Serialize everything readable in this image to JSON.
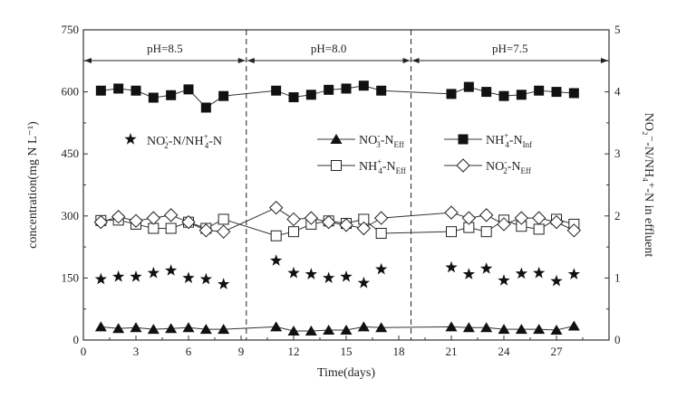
{
  "chart_data": {
    "type": "scatter",
    "xlabel": "Time(days)",
    "ylabel": "concentration(mg N L⁻¹)",
    "ylabel_right": "NO₂⁻-N/NH₄⁺-N in effluent",
    "xlim": [
      0,
      30
    ],
    "ylim": [
      0,
      750
    ],
    "ylim_right": [
      0,
      5
    ],
    "xticks": [
      0,
      3,
      6,
      9,
      12,
      15,
      18,
      21,
      24,
      27
    ],
    "yticks": [
      0,
      150,
      300,
      450,
      600,
      750
    ],
    "yticks_right": [
      0,
      1,
      2,
      3,
      4,
      5
    ],
    "phases": [
      {
        "label": "pH=8.5",
        "from": 0,
        "to": 9.3
      },
      {
        "label": "pH=8.0",
        "from": 9.3,
        "to": 18.7
      },
      {
        "label": "pH=7.5",
        "from": 18.7,
        "to": 30
      }
    ],
    "phase_boundaries": [
      9.3,
      18.7
    ],
    "x": [
      1,
      2,
      3,
      4,
      5,
      6,
      7,
      8,
      11,
      12,
      13,
      14,
      15,
      16,
      17,
      21,
      22,
      23,
      24,
      25,
      26,
      27,
      28
    ],
    "series": [
      {
        "key": "nh4_inf",
        "label": {
          "a": "NH",
          "sub": "4",
          "sup": "+",
          "b": "-N",
          "sub2": "Inf"
        },
        "marker": "square-filled",
        "line": true,
        "axis": "left",
        "values": [
          603,
          608,
          603,
          586,
          592,
          606,
          562,
          590,
          603,
          587,
          593,
          605,
          608,
          615,
          603,
          595,
          612,
          600,
          590,
          593,
          603,
          600,
          597
        ]
      },
      {
        "key": "nh4_eff",
        "label": {
          "a": "NH",
          "sub": "4",
          "sup": "+",
          "b": "-N",
          "sub2": "Eff"
        },
        "marker": "square-open",
        "line": true,
        "axis": "left",
        "values": [
          289,
          290,
          280,
          270,
          270,
          285,
          270,
          292,
          252,
          262,
          280,
          288,
          282,
          292,
          258,
          262,
          272,
          262,
          290,
          275,
          268,
          292,
          280
        ]
      },
      {
        "key": "no2_eff",
        "label": {
          "a": "NO",
          "sub": "2",
          "sup": "-",
          "b": "-N",
          "sub2": "Eff"
        },
        "marker": "diamond-open",
        "line": true,
        "axis": "left",
        "values": [
          285,
          298,
          288,
          295,
          302,
          285,
          265,
          262,
          320,
          292,
          295,
          285,
          278,
          270,
          295,
          308,
          295,
          302,
          280,
          295,
          295,
          285,
          265
        ]
      },
      {
        "key": "no3_eff",
        "label": {
          "a": "NO",
          "sub": "3",
          "sup": "-",
          "b": "-N",
          "sub2": "Eff"
        },
        "marker": "triangle-filled",
        "line": true,
        "axis": "left",
        "values": [
          32,
          28,
          30,
          26,
          28,
          30,
          26,
          26,
          32,
          22,
          22,
          24,
          24,
          32,
          30,
          32,
          30,
          30,
          26,
          26,
          26,
          24,
          34
        ]
      },
      {
        "key": "ratio",
        "label": {
          "a": "NO",
          "sub": "2",
          "sup": "-",
          "b": "-N/NH",
          "sub3": "4",
          "sup3": "+",
          "c": "-N"
        },
        "marker": "star",
        "line": false,
        "axis": "right",
        "values": [
          0.98,
          1.02,
          1.02,
          1.08,
          1.12,
          1.0,
          0.98,
          0.9,
          1.28,
          1.08,
          1.06,
          1.0,
          1.02,
          0.92,
          1.14,
          1.17,
          1.06,
          1.15,
          0.96,
          1.07,
          1.08,
          0.95,
          1.06
        ]
      }
    ]
  }
}
